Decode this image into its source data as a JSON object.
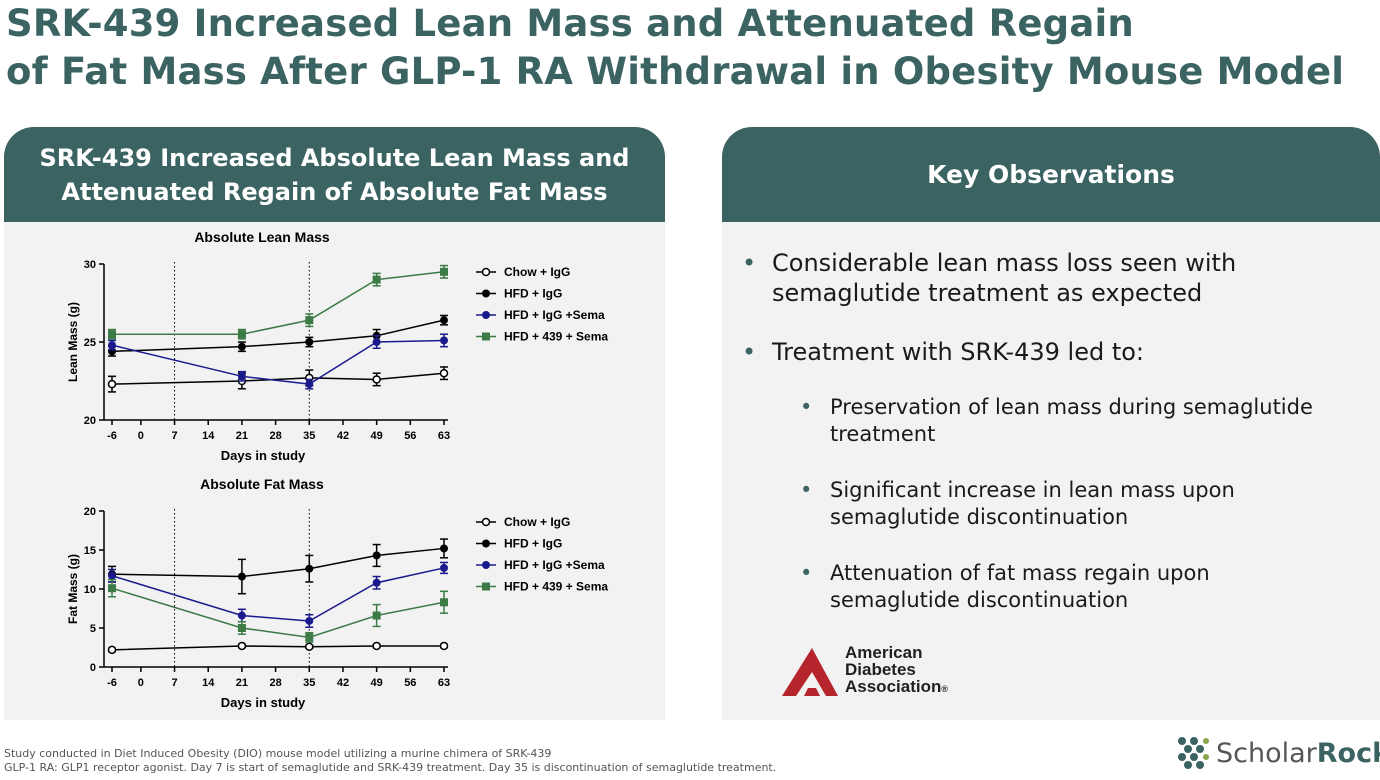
{
  "title_line1": "SRK-439 Increased Lean Mass and Attenuated Regain",
  "title_line2": "of Fat Mass After GLP-1 RA Withdrawal in Obesity Mouse Model",
  "left_panel": {
    "header_line1": "SRK-439 Increased Absolute Lean Mass and",
    "header_line2": "Attenuated Regain of Absolute Fat Mass"
  },
  "right_panel": {
    "header": "Key Observations",
    "bullets": [
      {
        "line1": "Considerable lean mass loss seen with",
        "line2": "semaglutide treatment as expected"
      },
      {
        "line1": "Treatment with SRK-439 led to:",
        "line2": ""
      }
    ],
    "sub_bullets": [
      {
        "line1": "Preservation of lean mass during semaglutide",
        "line2": "treatment"
      },
      {
        "line1": "Significant increase in lean mass upon",
        "line2": "semaglutide discontinuation"
      },
      {
        "line1": "Attenuation of fat mass regain upon",
        "line2": "semaglutide discontinuation"
      }
    ],
    "logo": {
      "line1": "American",
      "line2": "Diabetes",
      "line3": "Association",
      "mark": "®"
    }
  },
  "footnote_line1": "Study conducted in Diet Induced Obesity (DIO) mouse model utilizing a murine chimera of SRK-439",
  "footnote_line2": "GLP-1 RA: GLP1 receptor agonist. Day 7 is start of semaglutide and SRK-439 treatment. Day 35 is discontinuation of semaglutide treatment.",
  "brand": {
    "part1": "Scholar",
    "part2": "Rock"
  },
  "colors": {
    "teal": "#3a6362",
    "black": "#000000",
    "navy": "#1a1a8c",
    "green": "#3c7a46",
    "ada_red": "#b5252b"
  },
  "chart_data": [
    {
      "type": "line",
      "title": "Absolute Lean Mass",
      "xlabel": "Days in study",
      "ylabel": "Lean Mass (g)",
      "xlim": [
        -6,
        63
      ],
      "ylim": [
        20,
        30
      ],
      "xticks": [
        -6,
        0,
        7,
        14,
        21,
        28,
        35,
        42,
        49,
        56,
        63
      ],
      "yticks": [
        20,
        25,
        30
      ],
      "vlines": [
        7,
        35
      ],
      "legend_position": "right",
      "series": [
        {
          "name": "Chow + IgG",
          "marker": "open-circle",
          "color": "#000000",
          "x": [
            -6,
            21,
            35,
            49,
            63
          ],
          "y": [
            22.3,
            22.5,
            22.7,
            22.6,
            23.0
          ],
          "err": [
            0.5,
            0.5,
            0.5,
            0.4,
            0.4
          ]
        },
        {
          "name": "HFD + IgG",
          "marker": "circle",
          "color": "#000000",
          "x": [
            -6,
            21,
            35,
            49,
            63
          ],
          "y": [
            24.4,
            24.7,
            25.0,
            25.4,
            26.4
          ],
          "err": [
            0.3,
            0.3,
            0.3,
            0.4,
            0.3
          ]
        },
        {
          "name": "HFD + IgG +Sema",
          "marker": "circle",
          "color": "#1a1a8c",
          "x": [
            -6,
            21,
            35,
            49,
            63
          ],
          "y": [
            24.8,
            22.8,
            22.3,
            25.0,
            25.1
          ],
          "err": [
            0.3,
            0.3,
            0.3,
            0.4,
            0.4
          ]
        },
        {
          "name": "HFD + 439 + Sema",
          "marker": "square",
          "color": "#3c7a46",
          "x": [
            -6,
            21,
            35,
            49,
            63
          ],
          "y": [
            25.5,
            25.5,
            26.4,
            29.0,
            29.5
          ],
          "err": [
            0.3,
            0.3,
            0.4,
            0.4,
            0.4
          ]
        }
      ]
    },
    {
      "type": "line",
      "title": "Absolute Fat Mass",
      "xlabel": "Days in study",
      "ylabel": "Fat Mass (g)",
      "xlim": [
        -6,
        63
      ],
      "ylim": [
        0,
        20
      ],
      "xticks": [
        -6,
        0,
        7,
        14,
        21,
        28,
        35,
        42,
        49,
        56,
        63
      ],
      "yticks": [
        0,
        5,
        10,
        15,
        20
      ],
      "vlines": [
        7,
        35
      ],
      "legend_position": "right",
      "series": [
        {
          "name": "Chow + IgG",
          "marker": "open-circle",
          "color": "#000000",
          "x": [
            -6,
            21,
            35,
            49,
            63
          ],
          "y": [
            2.2,
            2.7,
            2.6,
            2.7,
            2.7
          ],
          "err": [
            0.2,
            0.2,
            0.2,
            0.2,
            0.2
          ]
        },
        {
          "name": "HFD + IgG",
          "marker": "circle",
          "color": "#000000",
          "x": [
            -6,
            21,
            35,
            49,
            63
          ],
          "y": [
            11.9,
            11.6,
            12.6,
            14.3,
            15.2
          ],
          "err": [
            1.0,
            2.2,
            1.7,
            1.4,
            1.2
          ]
        },
        {
          "name": "HFD + IgG +Sema",
          "marker": "circle",
          "color": "#1a1a8c",
          "x": [
            -6,
            21,
            35,
            49,
            63
          ],
          "y": [
            11.7,
            6.6,
            5.9,
            10.8,
            12.7
          ],
          "err": [
            0.8,
            0.8,
            0.8,
            0.8,
            0.7
          ]
        },
        {
          "name": "HFD + 439 + Sema",
          "marker": "square",
          "color": "#3c7a46",
          "x": [
            -6,
            21,
            35,
            49,
            63
          ],
          "y": [
            10.1,
            5.0,
            3.8,
            6.6,
            8.3
          ],
          "err": [
            1.1,
            0.8,
            0.6,
            1.4,
            1.4
          ]
        }
      ]
    }
  ]
}
